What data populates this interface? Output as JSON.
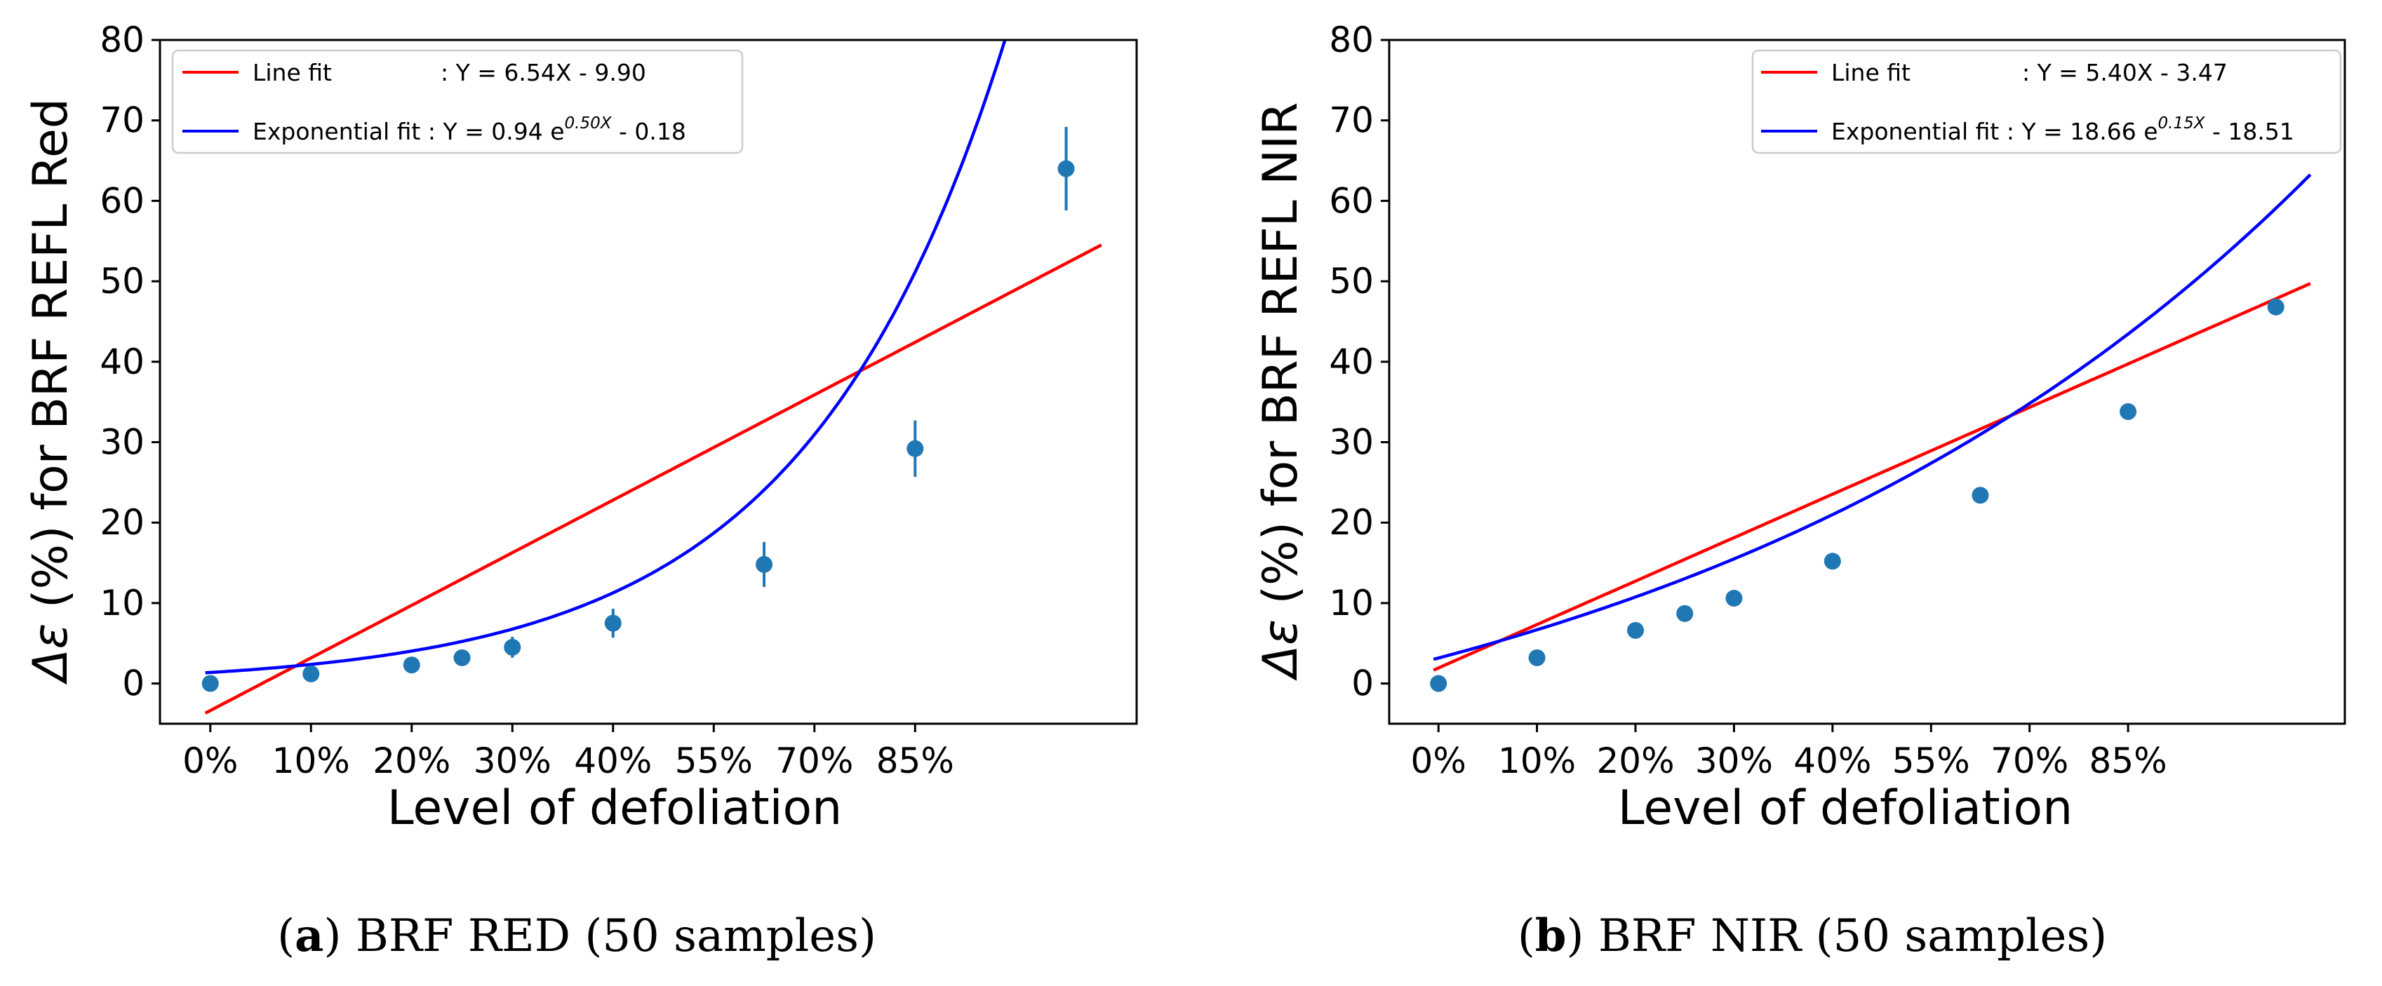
{
  "chart_data": [
    {
      "type": "scatter",
      "id": "a",
      "categories": [
        "0%",
        "10%",
        "20%",
        "30%",
        "40%",
        "55%",
        "70%",
        "85%"
      ],
      "xlabel": "Level of defoliation",
      "ylabel_prefix": "Δε",
      "ylabel_rest": " (%) for BRF REFL Red",
      "xlim": [
        -0.5,
        9.2
      ],
      "ylim": [
        -5,
        80
      ],
      "yticks": [
        0,
        10,
        20,
        30,
        40,
        50,
        60,
        70,
        80
      ],
      "points": {
        "x": [
          0,
          1,
          2,
          2.5,
          3,
          4,
          5.5,
          7,
          8.5
        ],
        "y": [
          0,
          1.2,
          2.3,
          3.2,
          4.5,
          7.5,
          14.8,
          29.2,
          64
        ],
        "err": [
          0.2,
          0.4,
          0.6,
          0.9,
          1.3,
          1.8,
          2.8,
          3.5,
          5.2
        ]
      },
      "series": [
        {
          "name": "Line fit",
          "equation": ": Y = 6.54X - 9.90",
          "color": "#ff0000",
          "kind": "line",
          "a": 6.54,
          "b": -9.9
        },
        {
          "name": "Exponential fit",
          "equation_pre": ": Y = 0.94 e",
          "equation_sup": "0.50X",
          "equation_post": " - 0.18",
          "color": "#0000ff",
          "kind": "exp",
          "a": 0.94,
          "k": 0.5,
          "c": -0.18
        }
      ],
      "point_color": "#1f77b4",
      "legend_position": "top-left",
      "caption_label": "a",
      "caption_text": ") BRF RED (50 samples)"
    },
    {
      "type": "scatter",
      "id": "b",
      "categories": [
        "0%",
        "10%",
        "20%",
        "30%",
        "40%",
        "55%",
        "70%",
        "85%"
      ],
      "xlabel": "Level of defoliation",
      "ylabel_prefix": "Δε",
      "ylabel_rest": " (%) for BRF REFL NIR",
      "xlim": [
        -0.5,
        9.2
      ],
      "ylim": [
        -5,
        80
      ],
      "yticks": [
        0,
        10,
        20,
        30,
        40,
        50,
        60,
        70,
        80
      ],
      "points": {
        "x": [
          0,
          1,
          2,
          2.5,
          3,
          4,
          5.5,
          7,
          8.5
        ],
        "y": [
          0,
          3.2,
          6.6,
          8.7,
          10.6,
          15.2,
          23.4,
          33.8,
          46.8
        ],
        "err": [
          0.1,
          0.1,
          0.1,
          0.1,
          0.1,
          0.2,
          0.2,
          0.3,
          0.4
        ]
      },
      "series": [
        {
          "name": "Line fit",
          "equation": ": Y = 5.40X - 3.47",
          "color": "#ff0000",
          "kind": "line",
          "a": 5.4,
          "b": -3.47
        },
        {
          "name": "Exponential fit",
          "equation_pre": ": Y = 18.66 e",
          "equation_sup": "0.15X",
          "equation_post": " - 18.51",
          "color": "#0000ff",
          "kind": "exp",
          "a": 18.66,
          "k": 0.15,
          "c": -18.51
        }
      ],
      "point_color": "#1f77b4",
      "legend_position": "top-right",
      "caption_label": "b",
      "caption_text": ") BRF NIR (50 samples)"
    }
  ]
}
